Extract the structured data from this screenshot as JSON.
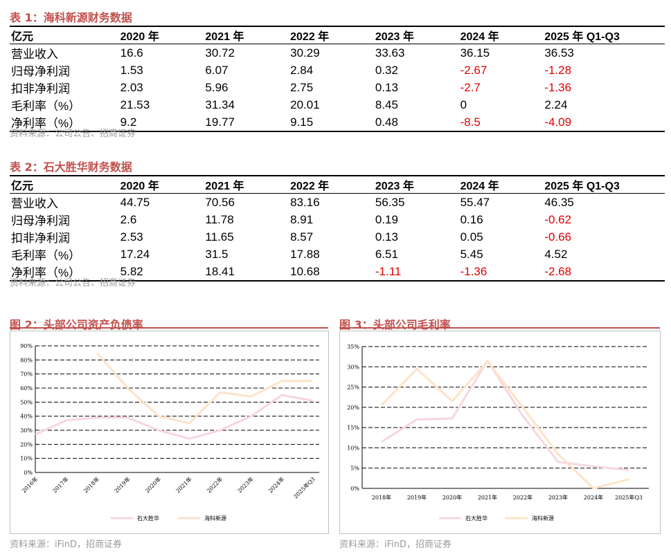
{
  "table1": {
    "title": "表 1：海科新源财务数据",
    "headers": [
      "亿元",
      "2020 年",
      "2021 年",
      "2022 年",
      "2023 年",
      "2024 年",
      "2025 年 Q1-Q3"
    ],
    "rows": [
      {
        "label": "营业收入",
        "values": [
          "16.6",
          "30.72",
          "30.29",
          "33.63",
          "36.15",
          "36.53"
        ]
      },
      {
        "label": "归母净利润",
        "values": [
          "1.53",
          "6.07",
          "2.84",
          "0.32",
          "-2.67",
          "-1.28"
        ]
      },
      {
        "label": "扣非净利润",
        "values": [
          "2.03",
          "5.96",
          "2.75",
          "0.13",
          "-2.7",
          "-1.36"
        ]
      },
      {
        "label": "毛利率（%）",
        "values": [
          "21.53",
          "31.34",
          "20.01",
          "8.45",
          "0",
          "2.24"
        ]
      },
      {
        "label": "净利率（%）",
        "values": [
          "9.2",
          "19.77",
          "9.15",
          "0.48",
          "-8.5",
          "-4.09"
        ]
      }
    ],
    "source": "资料来源：公司公告、招商证券"
  },
  "table2": {
    "title": "表 2：石大胜华财务数据",
    "headers": [
      "亿元",
      "2020 年",
      "2021 年",
      "2022 年",
      "2023 年",
      "2024 年",
      "2025 年 Q1-Q3"
    ],
    "rows": [
      {
        "label": "营业收入",
        "values": [
          "44.75",
          "70.56",
          "83.16",
          "56.35",
          "55.47",
          "46.35"
        ]
      },
      {
        "label": "归母净利润",
        "values": [
          "2.6",
          "11.78",
          "8.91",
          "0.19",
          "0.16",
          "-0.62"
        ]
      },
      {
        "label": "扣非净利润",
        "values": [
          "2.53",
          "11.65",
          "8.57",
          "0.13",
          "0.05",
          "-0.66"
        ]
      },
      {
        "label": "毛利率（%）",
        "values": [
          "17.24",
          "31.5",
          "17.88",
          "6.51",
          "5.45",
          "4.52"
        ]
      },
      {
        "label": "净利率（%）",
        "values": [
          "5.82",
          "18.41",
          "10.68",
          "-1.11",
          "-1.36",
          "-2.68"
        ]
      }
    ],
    "source": "资料来源：公司公告、招商证券"
  },
  "figure2": {
    "title": "图 2：头部公司资产负债率",
    "source": "资料来源：iFinD，招商证券"
  },
  "figure3": {
    "title": "图 3：头部公司毛利率",
    "source": "资料来源：iFinD，招商证券"
  },
  "colors": {
    "accent": "#c0504d",
    "negative": "#e00000",
    "series_shida": "#f7d6de",
    "series_haike": "#fde3c8"
  },
  "chart_data": [
    {
      "type": "line",
      "title": "图 2：头部公司资产负债率",
      "categories": [
        "2016年",
        "2017年",
        "2018年",
        "2019年",
        "2020年",
        "2021年",
        "2022年",
        "2023年",
        "2024年",
        "2025年Q3"
      ],
      "yticks": [
        "0%",
        "10%",
        "20%",
        "30%",
        "40%",
        "50%",
        "60%",
        "70%",
        "80%",
        "90%"
      ],
      "ylim": [
        0,
        90
      ],
      "series": [
        {
          "name": "石大胜华",
          "values": [
            27,
            37,
            39,
            39,
            30,
            24,
            30,
            40,
            55,
            51
          ]
        },
        {
          "name": "海科新源",
          "values": [
            null,
            null,
            85,
            60,
            40,
            35,
            57,
            54,
            65,
            65
          ]
        }
      ],
      "legend": "bottom",
      "grid": true
    },
    {
      "type": "line",
      "title": "图 3：头部公司毛利率",
      "categories": [
        "2018年",
        "2019年",
        "2020年",
        "2021年",
        "2022年",
        "2023年",
        "2024年",
        "2025年Q3"
      ],
      "yticks": [
        "0%",
        "5%",
        "10%",
        "15%",
        "20%",
        "25%",
        "30%",
        "35%"
      ],
      "ylim": [
        0,
        35
      ],
      "series": [
        {
          "name": "石大胜华",
          "values": [
            11.5,
            17.0,
            17.24,
            31.5,
            17.88,
            6.51,
            5.45,
            4.52
          ]
        },
        {
          "name": "海科新源",
          "values": [
            20.5,
            29.5,
            21.53,
            31.34,
            20.01,
            8.45,
            0,
            2.24
          ]
        }
      ],
      "legend": "bottom",
      "grid": true
    }
  ]
}
